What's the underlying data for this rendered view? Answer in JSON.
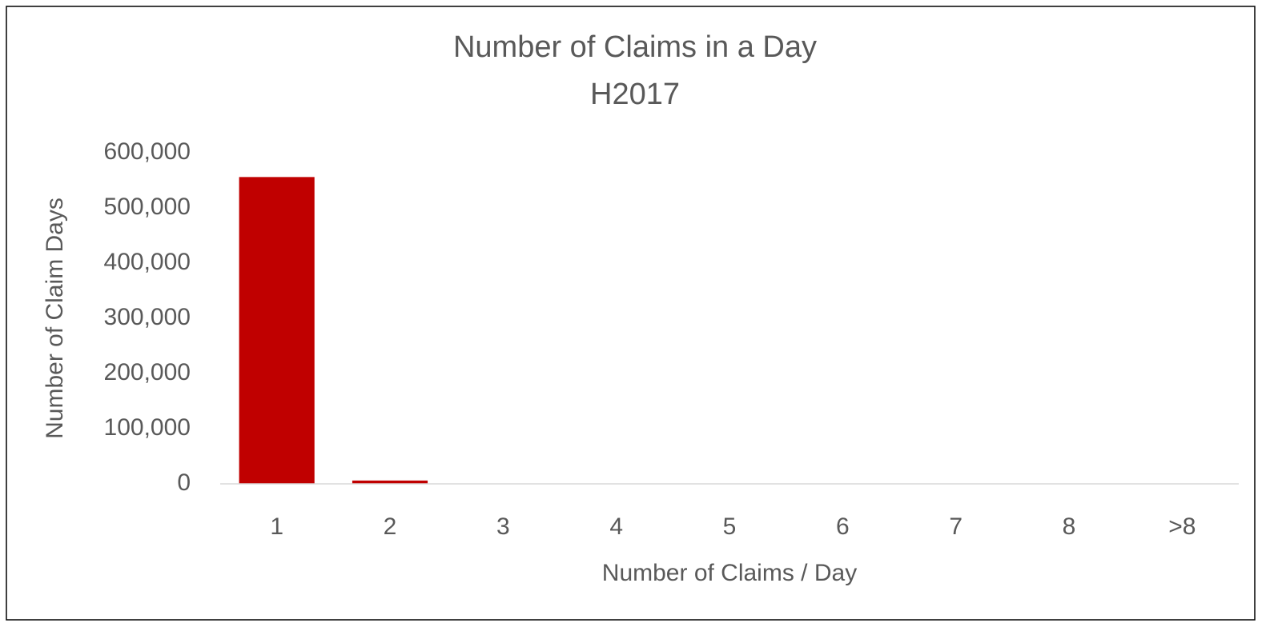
{
  "chart_data": {
    "type": "bar",
    "title": "Number of Claims in a Day",
    "subtitle": "H2017",
    "x_label": "Number of Claims / Day",
    "y_label": "Number of Claim Days",
    "categories": [
      "1",
      "2",
      "3",
      "4",
      "5",
      "6",
      "7",
      "8",
      ">8"
    ],
    "values": [
      556000,
      6000,
      300,
      0,
      0,
      0,
      0,
      0,
      0
    ],
    "color": "#c00000",
    "ylim": [
      0,
      600000
    ],
    "yticks": [
      0,
      {
        "value": 100000,
        "label": "100,000"
      },
      {
        "value": 200000,
        "label": "200,000"
      },
      {
        "value": 300000,
        "label": "300,000"
      },
      {
        "value": 400000,
        "label": "400,000"
      },
      {
        "value": 500000,
        "label": "500,000"
      },
      {
        "value": 600000,
        "label": "600,000"
      }
    ],
    "grid": false
  }
}
